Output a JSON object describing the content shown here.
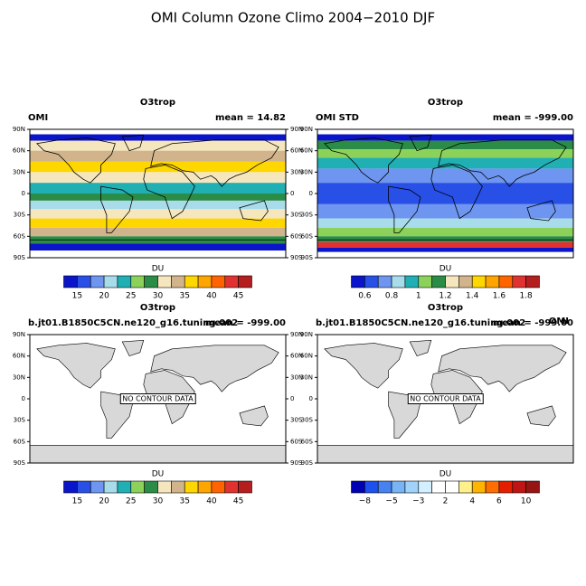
{
  "title": "OMI Column Ozone Climo 2004−2010 DJF",
  "lat_labels": [
    "90N",
    "60N",
    "30N",
    "0",
    "30S",
    "60S",
    "90S"
  ],
  "panels": [
    {
      "header": "O3trop",
      "left": "OMI",
      "right": "mean =  14.82",
      "units": "DU",
      "colorbar": {
        "colors": [
          "#0a14c8",
          "#2850e6",
          "#6e96f0",
          "#a8dcea",
          "#20b0b4",
          "#8cd25a",
          "#2a8c46",
          "#f5e6be",
          "#d2b48c",
          "#ffd700",
          "#ffa500",
          "#ff6400",
          "#e13232",
          "#b41e1e"
        ],
        "labels": [
          "15",
          "20",
          "25",
          "30",
          "35",
          "40",
          "45"
        ]
      }
    },
    {
      "header": "O3trop",
      "left": "OMI STD",
      "right": "mean = -999.00",
      "units": "DU",
      "colorbar": {
        "colors": [
          "#0a14c8",
          "#2850e6",
          "#6e96f0",
          "#a8dcea",
          "#20b0b4",
          "#8cd25a",
          "#2a8c46",
          "#f5e6be",
          "#d2b48c",
          "#ffd700",
          "#ffa500",
          "#ff6400",
          "#e13232",
          "#b41e1e"
        ],
        "labels": [
          "0.6",
          "0.8",
          "1",
          "1.2",
          "1.4",
          "1.6",
          "1.8"
        ]
      }
    },
    {
      "header": "O3trop",
      "left": "b.jt01.B1850C5CN.ne120_g16.tuning.002",
      "right": "mean = -999.00",
      "units": "DU",
      "message": "NO CONTOUR DATA",
      "colorbar": {
        "colors": [
          "#0a14c8",
          "#2850e6",
          "#6e96f0",
          "#a8dcea",
          "#20b0b4",
          "#8cd25a",
          "#2a8c46",
          "#f5e6be",
          "#d2b48c",
          "#ffd700",
          "#ffa500",
          "#ff6400",
          "#e13232",
          "#b41e1e"
        ],
        "labels": [
          "15",
          "20",
          "25",
          "30",
          "35",
          "40",
          "45"
        ]
      }
    },
    {
      "header": "O3trop",
      "left": "b.jt01.B1850C5CN.ne120_g16.tuning.002",
      "right": "mean = -999.00",
      "overlay": "OMI",
      "units": "DU",
      "message": "NO CONTOUR DATA",
      "colorbar": {
        "colors": [
          "#0000b4",
          "#1e50f0",
          "#4682f0",
          "#78b4f5",
          "#a0d2fa",
          "#d2f0ff",
          "#ffffff",
          "#ffffff",
          "#fff08c",
          "#ffb400",
          "#ff6e00",
          "#e61e00",
          "#be1414",
          "#961414"
        ],
        "labels": [
          "−8",
          "−5",
          "−3",
          "2",
          "4",
          "6",
          "10"
        ]
      }
    }
  ]
}
